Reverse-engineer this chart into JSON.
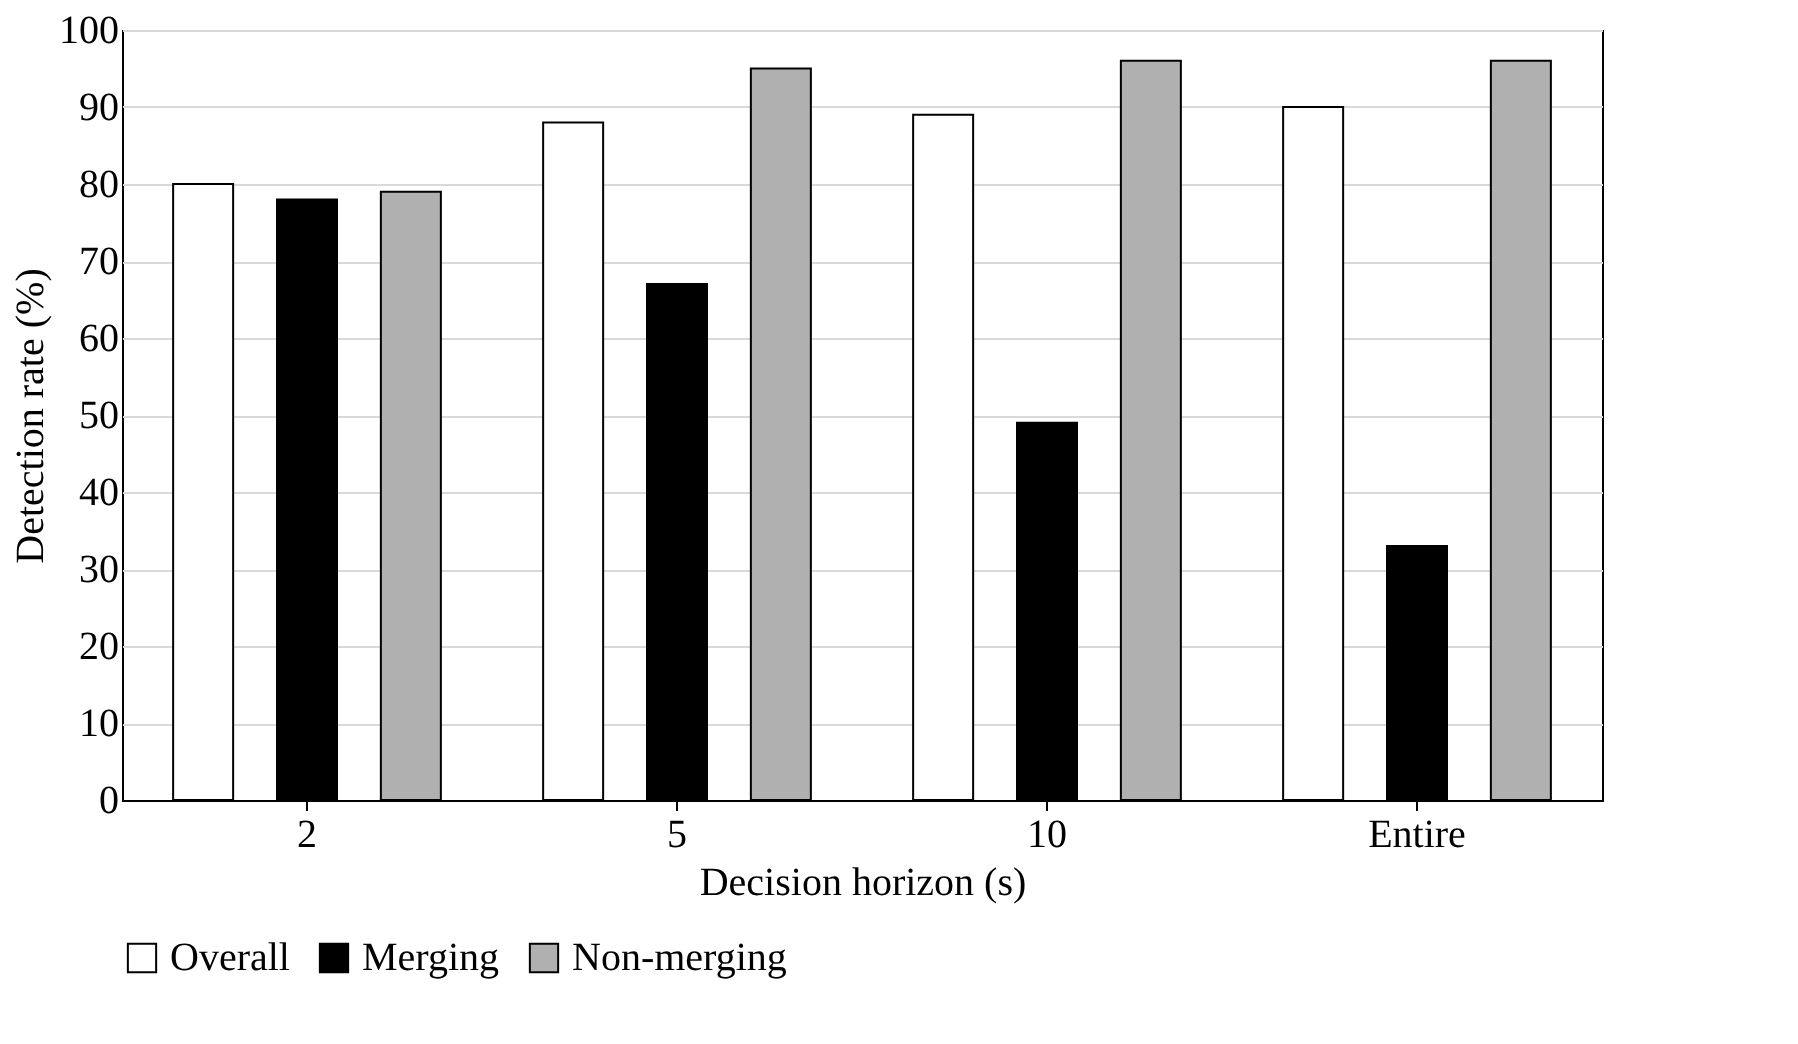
{
  "chart_data": {
    "type": "bar",
    "xlabel": "Decision horizon (s)",
    "ylabel": "Detection rate (%)",
    "categories": [
      "2",
      "5",
      "10",
      "Entire"
    ],
    "series": [
      {
        "name": "Overall",
        "color": "#ffffff",
        "values": [
          80,
          88,
          89,
          90
        ]
      },
      {
        "name": "Merging",
        "color": "#000000",
        "values": [
          78,
          67,
          49,
          33
        ]
      },
      {
        "name": "Non-merging",
        "color": "#b0b0b0",
        "values": [
          79,
          95,
          96,
          96
        ]
      }
    ],
    "ylim": [
      0,
      100
    ],
    "yticks": [
      0,
      10,
      20,
      30,
      40,
      50,
      60,
      70,
      80,
      90,
      100
    ],
    "grid": "y",
    "legend": "bottom"
  }
}
